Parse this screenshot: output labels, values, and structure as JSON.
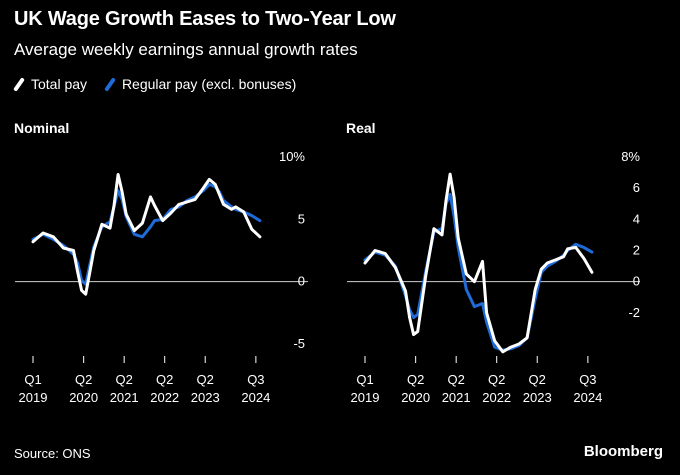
{
  "title": "UK Wage Growth Eases to Two-Year Low",
  "subtitle": "Average weekly earnings annual growth rates",
  "legend": [
    {
      "label": "Total pay",
      "color": "#ffffff"
    },
    {
      "label": "Regular pay (excl. bonuses)",
      "color": "#1f6bd8"
    }
  ],
  "footer": {
    "source": "Source: ONS",
    "brand": "Bloomberg"
  },
  "chart_data": [
    {
      "type": "line",
      "title": "Nominal",
      "unit": "%",
      "ylim": [
        -5,
        10
      ],
      "yticks": [
        {
          "value": 10,
          "label": "10%"
        },
        {
          "value": 5,
          "label": "5"
        },
        {
          "value": 0,
          "label": "0"
        },
        {
          "value": -5,
          "label": "-5"
        }
      ],
      "xlim": [
        2019.0,
        2024.75
      ],
      "xticks": [
        {
          "x": 2019.0,
          "q": "Q1",
          "year": "2019"
        },
        {
          "x": 2020.25,
          "q": "Q2",
          "year": "2020"
        },
        {
          "x": 2021.25,
          "q": "Q2",
          "year": "2021"
        },
        {
          "x": 2022.25,
          "q": "Q2",
          "year": "2022"
        },
        {
          "x": 2023.25,
          "q": "Q2",
          "year": "2023"
        },
        {
          "x": 2024.5,
          "q": "Q3",
          "year": "2024"
        }
      ],
      "series": [
        {
          "name": "Total pay",
          "x": [
            2019.0,
            2019.25,
            2019.5,
            2019.75,
            2020.0,
            2020.1,
            2020.2,
            2020.3,
            2020.4,
            2020.5,
            2020.7,
            2020.9,
            2021.0,
            2021.1,
            2021.2,
            2021.3,
            2021.5,
            2021.7,
            2021.9,
            2022.0,
            2022.2,
            2022.4,
            2022.6,
            2022.8,
            2023.0,
            2023.2,
            2023.35,
            2023.5,
            2023.6,
            2023.7,
            2023.9,
            2024.0,
            2024.2,
            2024.4,
            2024.6
          ],
          "values": [
            3.2,
            3.9,
            3.6,
            2.7,
            2.5,
            0.8,
            -0.7,
            -1.0,
            0.7,
            2.5,
            4.6,
            4.3,
            6.1,
            8.6,
            7.2,
            5.4,
            4.1,
            4.7,
            6.8,
            6.1,
            4.9,
            5.5,
            6.2,
            6.4,
            6.6,
            7.5,
            8.2,
            7.8,
            7.0,
            6.2,
            5.8,
            6.0,
            5.6,
            4.2,
            3.6
          ]
        },
        {
          "name": "Regular pay (excl. bonuses)",
          "x": [
            2019.0,
            2019.25,
            2019.5,
            2019.75,
            2020.0,
            2020.1,
            2020.2,
            2020.3,
            2020.4,
            2020.5,
            2020.7,
            2020.9,
            2021.0,
            2021.1,
            2021.2,
            2021.3,
            2021.5,
            2021.7,
            2021.9,
            2022.0,
            2022.2,
            2022.4,
            2022.6,
            2022.8,
            2023.0,
            2023.2,
            2023.35,
            2023.5,
            2023.6,
            2023.7,
            2023.9,
            2024.0,
            2024.2,
            2024.4,
            2024.6
          ],
          "values": [
            3.4,
            3.8,
            3.4,
            2.9,
            2.2,
            1.5,
            0.1,
            -0.2,
            1.3,
            2.8,
            4.4,
            4.8,
            6.0,
            7.3,
            6.6,
            5.2,
            3.8,
            3.6,
            4.4,
            4.9,
            5.0,
            5.8,
            6.0,
            6.5,
            6.8,
            7.3,
            7.8,
            7.6,
            7.2,
            6.5,
            6.0,
            5.8,
            5.6,
            5.3,
            4.9
          ]
        }
      ]
    },
    {
      "type": "line",
      "title": "Real",
      "unit": "%",
      "ylim": [
        -4,
        8
      ],
      "yticks": [
        {
          "value": 8,
          "label": "8%"
        },
        {
          "value": 6,
          "label": "6"
        },
        {
          "value": 4,
          "label": "4"
        },
        {
          "value": 2,
          "label": "2"
        },
        {
          "value": 0,
          "label": "0"
        },
        {
          "value": -2,
          "label": "-2"
        }
      ],
      "xlim": [
        2019.0,
        2024.75
      ],
      "xticks": [
        {
          "x": 2019.0,
          "q": "Q1",
          "year": "2019"
        },
        {
          "x": 2020.25,
          "q": "Q2",
          "year": "2020"
        },
        {
          "x": 2021.25,
          "q": "Q2",
          "year": "2021"
        },
        {
          "x": 2022.25,
          "q": "Q2",
          "year": "2022"
        },
        {
          "x": 2023.25,
          "q": "Q2",
          "year": "2023"
        },
        {
          "x": 2024.5,
          "q": "Q3",
          "year": "2024"
        }
      ],
      "series": [
        {
          "name": "Total pay",
          "x": [
            2019.0,
            2019.25,
            2019.5,
            2019.75,
            2020.0,
            2020.1,
            2020.2,
            2020.3,
            2020.5,
            2020.7,
            2020.9,
            2021.0,
            2021.1,
            2021.2,
            2021.3,
            2021.5,
            2021.7,
            2021.9,
            2022.0,
            2022.2,
            2022.4,
            2022.6,
            2022.8,
            2023.0,
            2023.2,
            2023.35,
            2023.5,
            2023.7,
            2023.9,
            2024.0,
            2024.2,
            2024.4,
            2024.6
          ],
          "values": [
            1.2,
            2.0,
            1.8,
            0.9,
            -0.6,
            -2.3,
            -3.4,
            -3.2,
            0.4,
            3.4,
            3.0,
            5.2,
            6.9,
            5.4,
            2.8,
            0.5,
            0.0,
            1.3,
            -2.0,
            -3.8,
            -4.5,
            -4.2,
            -4.0,
            -3.6,
            -0.5,
            0.8,
            1.2,
            1.4,
            1.6,
            2.1,
            2.2,
            1.5,
            0.6
          ]
        },
        {
          "name": "Regular pay (excl. bonuses)",
          "x": [
            2019.0,
            2019.25,
            2019.5,
            2019.75,
            2020.0,
            2020.1,
            2020.2,
            2020.3,
            2020.5,
            2020.7,
            2020.9,
            2021.0,
            2021.1,
            2021.2,
            2021.3,
            2021.5,
            2021.7,
            2021.9,
            2022.0,
            2022.2,
            2022.4,
            2022.6,
            2022.8,
            2023.0,
            2023.2,
            2023.35,
            2023.5,
            2023.7,
            2023.9,
            2024.0,
            2024.2,
            2024.4,
            2024.6
          ],
          "values": [
            1.4,
            1.9,
            1.7,
            1.0,
            -0.9,
            -1.8,
            -2.3,
            -2.1,
            0.7,
            3.2,
            3.4,
            5.0,
            5.6,
            4.2,
            2.2,
            -0.5,
            -1.6,
            -1.4,
            -2.6,
            -4.2,
            -4.4,
            -4.3,
            -4.1,
            -3.6,
            -1.1,
            0.6,
            1.0,
            1.3,
            1.7,
            2.0,
            2.4,
            2.2,
            1.9
          ]
        }
      ]
    }
  ]
}
